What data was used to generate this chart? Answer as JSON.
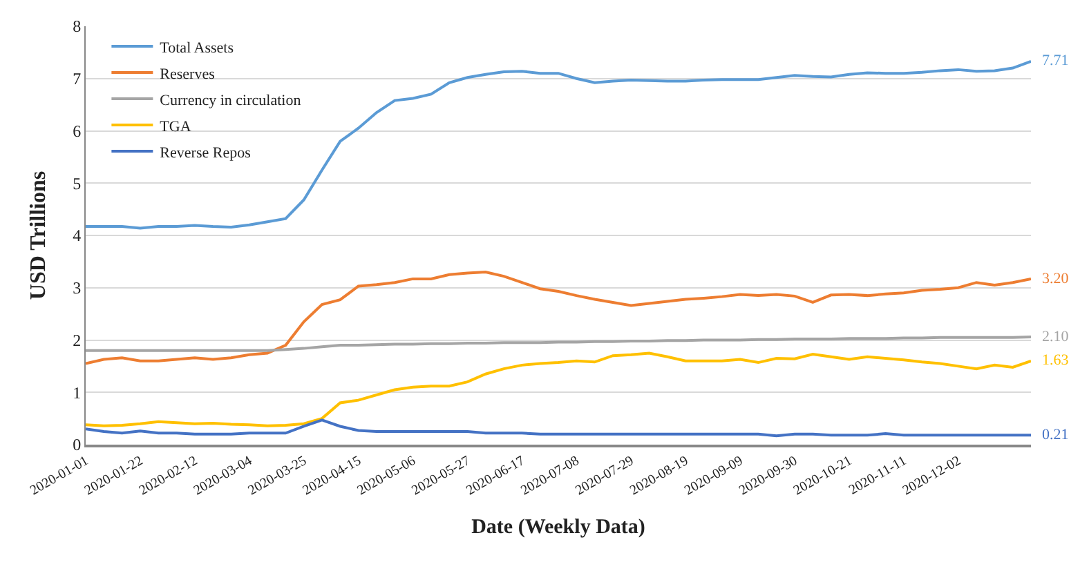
{
  "chart_data": {
    "type": "line",
    "xlabel": "Date (Weekly Data)",
    "ylabel": "USD Trillions",
    "x": [
      "2020-01-01",
      "2020-01-08",
      "2020-01-15",
      "2020-01-22",
      "2020-01-29",
      "2020-02-05",
      "2020-02-12",
      "2020-02-19",
      "2020-02-26",
      "2020-03-04",
      "2020-03-11",
      "2020-03-18",
      "2020-03-25",
      "2020-04-01",
      "2020-04-08",
      "2020-04-15",
      "2020-04-22",
      "2020-04-29",
      "2020-05-06",
      "2020-05-13",
      "2020-05-20",
      "2020-05-27",
      "2020-06-03",
      "2020-06-10",
      "2020-06-17",
      "2020-06-24",
      "2020-07-01",
      "2020-07-08",
      "2020-07-15",
      "2020-07-22",
      "2020-07-29",
      "2020-08-05",
      "2020-08-12",
      "2020-08-19",
      "2020-08-26",
      "2020-09-02",
      "2020-09-09",
      "2020-09-16",
      "2020-09-23",
      "2020-09-30",
      "2020-10-07",
      "2020-10-14",
      "2020-10-21",
      "2020-10-28",
      "2020-11-04",
      "2020-11-11",
      "2020-11-18",
      "2020-11-25",
      "2020-12-02",
      "2020-12-09",
      "2020-12-16",
      "2020-12-23",
      "2020-12-30"
    ],
    "series": [
      {
        "name": "Total Assets",
        "color": "#5b9bd5",
        "values": [
          4.17,
          4.17,
          4.17,
          4.14,
          4.17,
          4.17,
          4.19,
          4.17,
          4.16,
          4.2,
          4.26,
          4.32,
          4.68,
          5.25,
          5.8,
          6.05,
          6.35,
          6.58,
          6.62,
          6.7,
          6.92,
          7.02,
          7.08,
          7.13,
          7.14,
          7.1,
          7.1,
          7.0,
          6.92,
          6.95,
          6.97,
          6.96,
          6.95,
          6.95,
          6.97,
          6.98,
          6.98,
          6.98,
          7.02,
          7.06,
          7.04,
          7.03,
          7.08,
          7.11,
          7.1,
          7.1,
          7.12,
          7.15,
          7.17,
          7.14,
          7.15,
          7.2,
          7.33
        ]
      },
      {
        "name": "Reserves",
        "color": "#ed7d31",
        "values": [
          1.55,
          1.63,
          1.66,
          1.6,
          1.6,
          1.63,
          1.66,
          1.63,
          1.66,
          1.72,
          1.75,
          1.9,
          2.35,
          2.68,
          2.77,
          3.03,
          3.06,
          3.1,
          3.17,
          3.17,
          3.25,
          3.28,
          3.3,
          3.22,
          3.1,
          2.98,
          2.93,
          2.85,
          2.78,
          2.72,
          2.66,
          2.7,
          2.74,
          2.78,
          2.8,
          2.83,
          2.87,
          2.85,
          2.87,
          2.84,
          2.72,
          2.86,
          2.87,
          2.85,
          2.88,
          2.9,
          2.95,
          2.97,
          3.0,
          3.1,
          3.05,
          3.1,
          3.17
        ]
      },
      {
        "name": "Currency in circulation",
        "color": "#a5a5a5",
        "values": [
          1.8,
          1.8,
          1.8,
          1.8,
          1.8,
          1.8,
          1.8,
          1.8,
          1.8,
          1.8,
          1.8,
          1.82,
          1.84,
          1.87,
          1.9,
          1.9,
          1.91,
          1.92,
          1.92,
          1.93,
          1.93,
          1.94,
          1.94,
          1.95,
          1.95,
          1.95,
          1.96,
          1.96,
          1.97,
          1.97,
          1.98,
          1.98,
          1.99,
          1.99,
          2.0,
          2.0,
          2.0,
          2.01,
          2.01,
          2.02,
          2.02,
          2.02,
          2.03,
          2.03,
          2.03,
          2.04,
          2.04,
          2.05,
          2.05,
          2.05,
          2.05,
          2.05,
          2.06
        ]
      },
      {
        "name": "TGA",
        "color": "#ffc000",
        "values": [
          0.38,
          0.36,
          0.37,
          0.4,
          0.44,
          0.42,
          0.4,
          0.41,
          0.39,
          0.38,
          0.36,
          0.37,
          0.4,
          0.5,
          0.8,
          0.85,
          0.95,
          1.05,
          1.1,
          1.12,
          1.12,
          1.2,
          1.35,
          1.45,
          1.52,
          1.55,
          1.57,
          1.6,
          1.58,
          1.7,
          1.72,
          1.75,
          1.68,
          1.6,
          1.6,
          1.6,
          1.63,
          1.57,
          1.65,
          1.64,
          1.73,
          1.68,
          1.63,
          1.68,
          1.65,
          1.62,
          1.58,
          1.55,
          1.5,
          1.45,
          1.52,
          1.48,
          1.6
        ]
      },
      {
        "name": "Reverse Repos",
        "color": "#4472c4",
        "values": [
          0.3,
          0.25,
          0.22,
          0.26,
          0.22,
          0.22,
          0.2,
          0.2,
          0.2,
          0.22,
          0.22,
          0.22,
          0.35,
          0.47,
          0.35,
          0.27,
          0.25,
          0.25,
          0.25,
          0.25,
          0.25,
          0.25,
          0.22,
          0.22,
          0.22,
          0.2,
          0.2,
          0.2,
          0.2,
          0.2,
          0.2,
          0.2,
          0.2,
          0.2,
          0.2,
          0.2,
          0.2,
          0.2,
          0.17,
          0.2,
          0.2,
          0.18,
          0.18,
          0.18,
          0.21,
          0.18,
          0.18,
          0.18,
          0.18,
          0.18,
          0.18,
          0.18,
          0.18
        ]
      }
    ],
    "annotations": [
      "7.71",
      "3.20",
      "2.10",
      "1.63",
      "0.21"
    ],
    "xlim": [
      "2020-01-01",
      "2020-12-30"
    ],
    "xticks": [
      "2020-01-01",
      "2020-01-22",
      "2020-02-12",
      "2020-03-04",
      "2020-03-25",
      "2020-04-15",
      "2020-05-06",
      "2020-05-27",
      "2020-06-17",
      "2020-07-08",
      "2020-07-29",
      "2020-08-19",
      "2020-09-09",
      "2020-09-30",
      "2020-10-21",
      "2020-11-11",
      "2020-12-02"
    ],
    "ylim": [
      0,
      8
    ],
    "yticks": [
      0,
      1,
      2,
      3,
      4,
      5,
      6,
      7,
      8
    ],
    "grid": "y",
    "legend": "top left",
    "marker": "none",
    "line_style": "solid"
  }
}
